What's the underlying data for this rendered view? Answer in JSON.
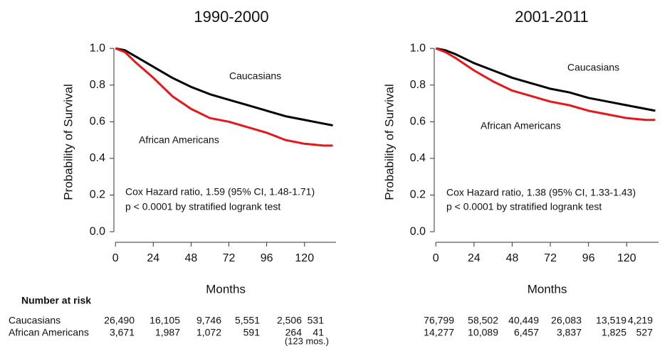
{
  "chart_data": [
    {
      "type": "line",
      "title": "1990-2000",
      "x_label": "Months",
      "y_label": "Probability of Survival",
      "x": [
        0,
        6,
        12,
        24,
        36,
        48,
        60,
        72,
        84,
        96,
        108,
        120,
        132,
        138
      ],
      "series": [
        {
          "name": "Caucasians",
          "color": "#000000",
          "values": [
            1.0,
            0.99,
            0.96,
            0.9,
            0.84,
            0.79,
            0.75,
            0.72,
            0.69,
            0.66,
            0.63,
            0.61,
            0.59,
            0.58
          ]
        },
        {
          "name": "African Americans",
          "color": "#e8161b",
          "values": [
            1.0,
            0.98,
            0.93,
            0.84,
            0.74,
            0.67,
            0.62,
            0.6,
            0.57,
            0.54,
            0.5,
            0.48,
            0.47,
            0.47
          ]
        }
      ],
      "annotations": [
        "Cox Hazard ratio, 1.59 (95% CI, 1.48-1.71)",
        "p < 0.0001 by stratified logrank test"
      ],
      "xlim": [
        -1,
        140
      ],
      "xticks": [
        0,
        24,
        48,
        72,
        96,
        120
      ],
      "ylim": [
        -0.05,
        1.02
      ],
      "yticks": [
        {
          "value": 0,
          "label": "0.0"
        },
        0.2,
        0.4,
        0.6,
        0.8,
        {
          "value": 1,
          "label": "1.0"
        }
      ]
    },
    {
      "type": "line",
      "title": "2001-2011",
      "x_label": "Months",
      "y_label": "Probability of Survival",
      "x": [
        0,
        6,
        12,
        24,
        36,
        48,
        60,
        72,
        84,
        96,
        108,
        120,
        132,
        138
      ],
      "series": [
        {
          "name": "Caucasians",
          "color": "#000000",
          "values": [
            1.0,
            0.99,
            0.97,
            0.92,
            0.88,
            0.84,
            0.81,
            0.78,
            0.76,
            0.73,
            0.71,
            0.69,
            0.67,
            0.66
          ]
        },
        {
          "name": "African Americans",
          "color": "#e8161b",
          "values": [
            1.0,
            0.98,
            0.95,
            0.88,
            0.82,
            0.77,
            0.74,
            0.71,
            0.69,
            0.66,
            0.64,
            0.62,
            0.61,
            0.61
          ]
        }
      ],
      "annotations": [
        "Cox Hazard ratio, 1.38 (95% CI, 1.33-1.43)",
        "p < 0.0001 by stratified logrank test"
      ],
      "xlim": [
        -1,
        140
      ],
      "xticks": [
        0,
        24,
        48,
        72,
        96,
        120
      ],
      "ylim": [
        -0.05,
        1.02
      ],
      "yticks": [
        {
          "value": 0,
          "label": "0.0"
        },
        0.2,
        0.4,
        0.6,
        0.8,
        {
          "value": 1,
          "label": "1.0"
        }
      ]
    }
  ],
  "risk_table": {
    "title": "Number at risk",
    "rows": [
      {
        "label": "Caucasians",
        "left": [
          "26,490",
          "16,105",
          "9,746",
          "5,551",
          "2,506",
          "531"
        ],
        "right": [
          "76,799",
          "58,502",
          "40,449",
          "26,083",
          "13,519",
          "4,219"
        ]
      },
      {
        "label": "African Americans",
        "left": [
          "3,671",
          "1,987",
          "1,072",
          "591",
          "264",
          "41"
        ],
        "right": [
          "14,277",
          "10,089",
          "6,457",
          "3,837",
          "1,825",
          "527"
        ]
      }
    ],
    "note": "(123 mos.)"
  }
}
